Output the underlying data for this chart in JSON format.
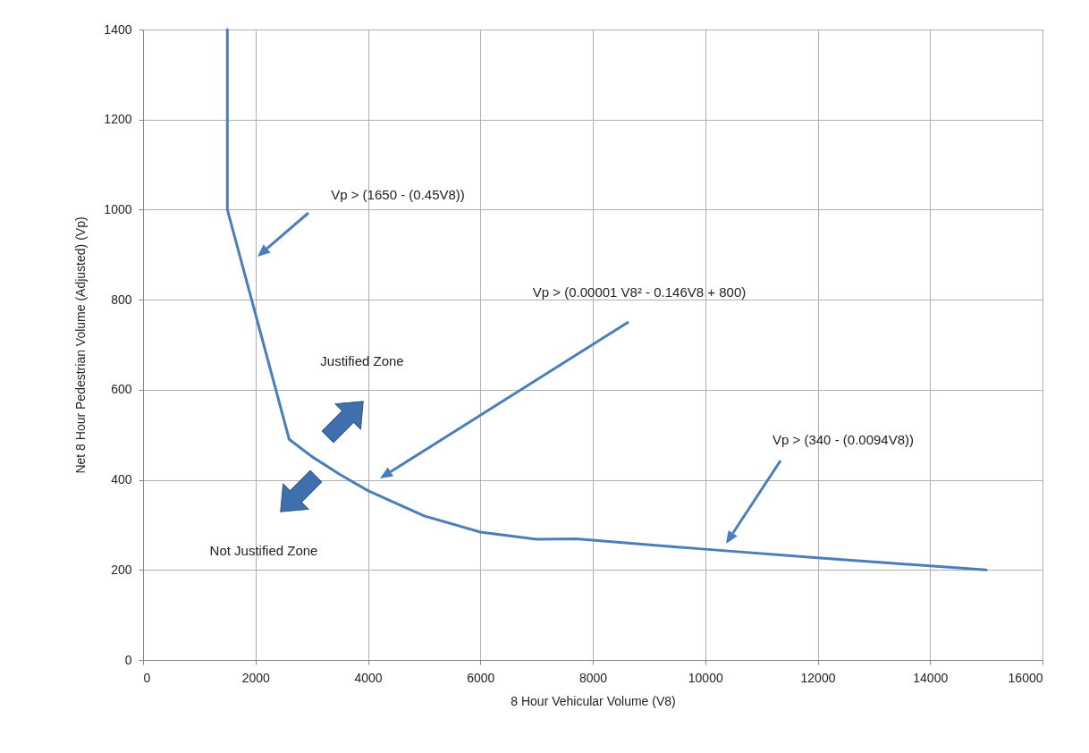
{
  "chart_data": {
    "type": "line",
    "xlabel": "8 Hour Vehicular Volume (V8)",
    "ylabel": "Net 8 Hour Pedestrian Volume (Adjusted) (Vp)",
    "x": [
      1500,
      1500,
      2600,
      3000,
      3500,
      4000,
      5000,
      6000,
      7000,
      7700,
      10000,
      12000,
      15000
    ],
    "series": [
      {
        "color": "#4a7ebb",
        "values": [
          1400,
          1000,
          490,
          452,
          412,
          376,
          320,
          284,
          268,
          269,
          246,
          227,
          200
        ]
      }
    ],
    "xlim": [
      0,
      16000
    ],
    "xticks": [
      0,
      2000,
      4000,
      6000,
      8000,
      10000,
      12000,
      14000,
      16000
    ],
    "ylim": [
      0,
      1400
    ],
    "yticks": [
      0,
      200,
      400,
      600,
      800,
      1000,
      1200,
      1400
    ],
    "grid": true,
    "marker": "none",
    "line_style": "solid",
    "annotations": [
      "Vp > (1650 - (0.45V8))",
      "Vp > (0.00001 V8² - 0.146V8 + 800)",
      "Vp > (340 - (0.0094V8))",
      "Justified Zone",
      "Not Justified Zone"
    ]
  }
}
